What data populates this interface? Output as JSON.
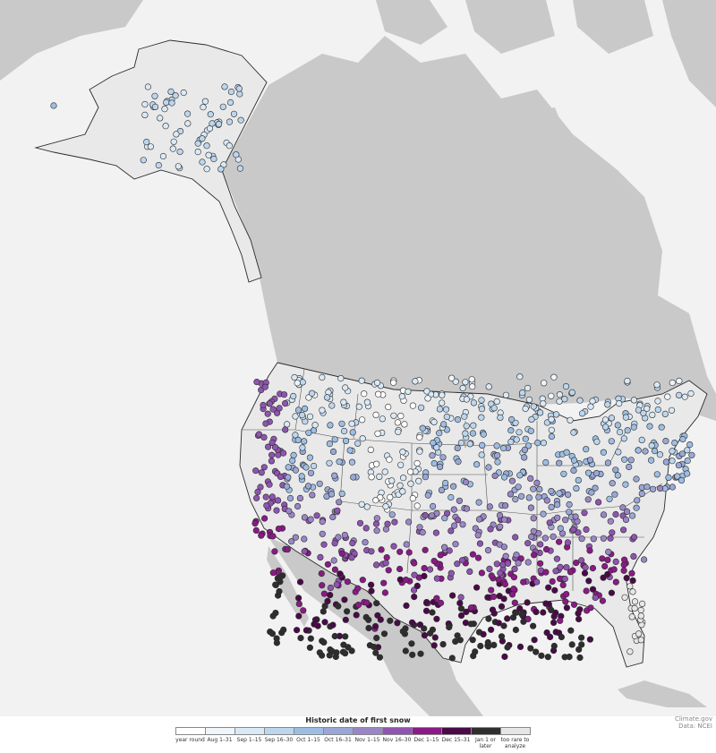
{
  "legend": {
    "title": "Historic date of first snow",
    "categories": [
      {
        "label": "year round",
        "color": "#ffffff"
      },
      {
        "label": "Aug 1–31",
        "color": "#eef5fb"
      },
      {
        "label": "Sep 1–15",
        "color": "#d9e9f6"
      },
      {
        "label": "Sep 16–30",
        "color": "#bcd6ee"
      },
      {
        "label": "Oct 1–15",
        "color": "#9dbee3"
      },
      {
        "label": "Oct 16–31",
        "color": "#9aa7d6"
      },
      {
        "label": "Nov 1–15",
        "color": "#9a86c6"
      },
      {
        "label": "Nov 16–30",
        "color": "#8e55b0"
      },
      {
        "label": "Dec 1–15",
        "color": "#8a1a86"
      },
      {
        "label": "Dec 15–31",
        "color": "#4a0a48"
      },
      {
        "label": "Jan 1 or later",
        "color": "#2e2e2e"
      },
      {
        "label": "too rare to analyze",
        "color": "#e6e6e6"
      }
    ]
  },
  "credit": {
    "line1": "Climate.gov",
    "line2": "Data: NCEI"
  }
}
